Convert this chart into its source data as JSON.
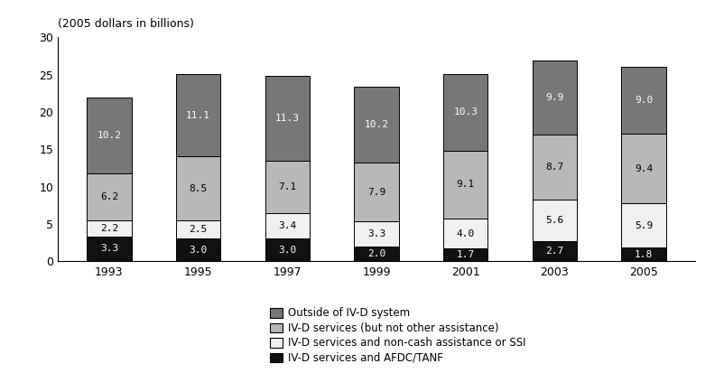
{
  "years": [
    "1993",
    "1995",
    "1997",
    "1999",
    "2001",
    "2003",
    "2005"
  ],
  "series": {
    "IV-D services and AFDC/TANF": [
      3.3,
      3.0,
      3.0,
      2.0,
      1.7,
      2.7,
      1.8
    ],
    "IV-D services and non-cash assistance or SSI": [
      2.2,
      2.5,
      3.4,
      3.3,
      4.0,
      5.6,
      5.9
    ],
    "IV-D services (but not other assistance)": [
      6.2,
      8.5,
      7.1,
      7.9,
      9.1,
      8.7,
      9.4
    ],
    "Outside of IV-D system": [
      10.2,
      11.1,
      11.3,
      10.2,
      10.3,
      9.9,
      9.0
    ]
  },
  "colors": {
    "IV-D services and AFDC/TANF": "#111111",
    "IV-D services and non-cash assistance or SSI": "#f0f0f0",
    "IV-D services (but not other assistance)": "#b8b8b8",
    "Outside of IV-D system": "#777777"
  },
  "edgecolors": {
    "IV-D services and AFDC/TANF": "#000000",
    "IV-D services and non-cash assistance or SSI": "#000000",
    "IV-D services (but not other assistance)": "#000000",
    "Outside of IV-D system": "#000000"
  },
  "top_label": "(2005 dollars in billions)",
  "ylim": [
    0,
    30
  ],
  "yticks": [
    0,
    5,
    10,
    15,
    20,
    25,
    30
  ],
  "bar_width": 0.5,
  "series_order": [
    "IV-D services and AFDC/TANF",
    "IV-D services and non-cash assistance or SSI",
    "IV-D services (but not other assistance)",
    "Outside of IV-D system"
  ],
  "legend_order": [
    "Outside of IV-D system",
    "IV-D services (but not other assistance)",
    "IV-D services and non-cash assistance or SSI",
    "IV-D services and AFDC/TANF"
  ],
  "label_color_map": {
    "IV-D services and AFDC/TANF": "#ffffff",
    "IV-D services and non-cash assistance or SSI": "#000000",
    "IV-D services (but not other assistance)": "#000000",
    "Outside of IV-D system": "#ffffff"
  },
  "label_fontsize": 8
}
